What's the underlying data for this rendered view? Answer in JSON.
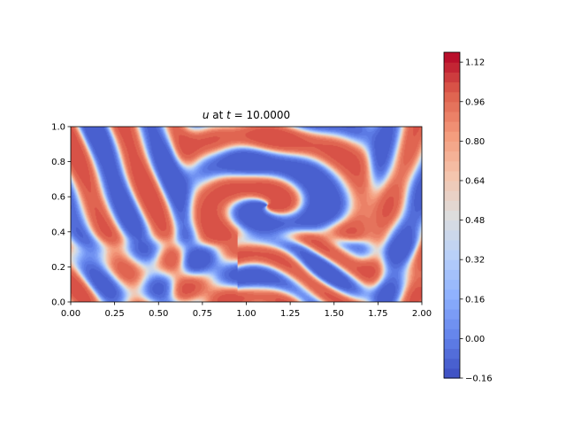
{
  "chart_data": [
    {
      "type": "heatmap",
      "title_var": "u",
      "title_mid": " at ",
      "title_tvar": "t",
      "title_eq": " = 10.0000",
      "xlim": [
        0.0,
        2.0
      ],
      "ylim": [
        0.0,
        1.0
      ],
      "xticks": [
        0.0,
        0.25,
        0.5,
        0.75,
        1.0,
        1.25,
        1.5,
        1.75,
        2.0
      ],
      "xtick_labels": [
        "0.00",
        "0.25",
        "0.50",
        "0.75",
        "1.00",
        "1.25",
        "1.50",
        "1.75",
        "2.00"
      ],
      "yticks": [
        0.0,
        0.2,
        0.4,
        0.6,
        0.8,
        1.0
      ],
      "ytick_labels": [
        "0.0",
        "0.2",
        "0.4",
        "0.6",
        "0.8",
        "1.0"
      ],
      "colormap": "coolwarm",
      "field_description": "spiral / labyrinthine stripe pattern alternating between low (blue, ~-0.1) and high (red, ~1.0) values",
      "colorbar": {
        "vmin": -0.16,
        "vmax": 1.16,
        "ticks": [
          -0.16,
          0.0,
          0.16,
          0.32,
          0.48,
          0.64,
          0.8,
          0.96,
          1.12
        ],
        "tick_labels": [
          "−0.16",
          "0.00",
          "0.16",
          "0.32",
          "0.48",
          "0.64",
          "0.80",
          "0.96",
          "1.12"
        ],
        "levels": 33
      }
    }
  ],
  "colors": {
    "cold": "#3b4cc0",
    "neutral": "#dddddd",
    "warm": "#b40426"
  }
}
